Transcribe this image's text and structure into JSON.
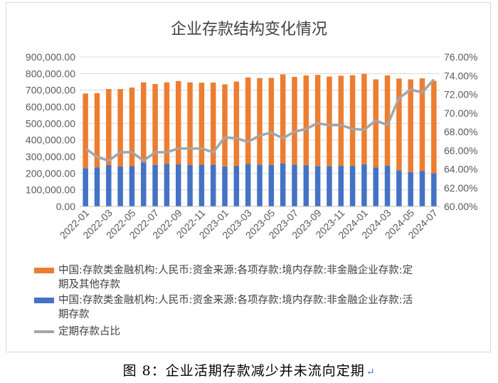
{
  "caption": "图 8：企业活期存款减少并未流向定期",
  "caption_mark": "↵",
  "chart_data": {
    "type": "bar",
    "title": "企业存款结构变化情况",
    "stacked": true,
    "categories": [
      "2022-01",
      "2022-02",
      "2022-03",
      "2022-04",
      "2022-05",
      "2022-06",
      "2022-07",
      "2022-08",
      "2022-09",
      "2022-10",
      "2022-11",
      "2022-12",
      "2023-01",
      "2023-02",
      "2023-03",
      "2023-04",
      "2023-05",
      "2023-06",
      "2023-07",
      "2023-08",
      "2023-09",
      "2023-10",
      "2023-11",
      "2023-12",
      "2024-01",
      "2024-02",
      "2024-03",
      "2024-04",
      "2024-05",
      "2024-06",
      "2024-07"
    ],
    "x_tick_labels": [
      "2022-01",
      "2022-03",
      "2022-05",
      "2022-07",
      "2022-09",
      "2022-11",
      "2023-01",
      "2023-03",
      "2023-05",
      "2023-07",
      "2023-09",
      "2023-11",
      "2024-01",
      "2024-03",
      "2024-05",
      "2024-07"
    ],
    "series": [
      {
        "name": "中国:存款类金融机构:人民币:资金来源:各项存款:境内存款:非金融企业存款:活期存款",
        "axis": "left",
        "color": "#4472c4",
        "values": [
          230000,
          235000,
          250000,
          240000,
          242000,
          265000,
          250000,
          255000,
          253000,
          250000,
          251000,
          252000,
          241000,
          244000,
          256000,
          252000,
          250000,
          259000,
          251000,
          248000,
          243000,
          243000,
          244000,
          244000,
          253000,
          235000,
          246000,
          218000,
          207000,
          214000,
          199000
        ]
      },
      {
        "name": "中国:存款类金融机构:人民币:资金来源:各项存款:境内存款:非金融企业存款:定期及其他存款",
        "axis": "left",
        "color": "#ed7d31",
        "values": [
          450000,
          447000,
          457000,
          467000,
          474000,
          482000,
          487000,
          492000,
          502000,
          497000,
          494000,
          494000,
          494000,
          508000,
          521000,
          521000,
          524000,
          536000,
          529000,
          541000,
          549000,
          539000,
          543000,
          546000,
          545000,
          530000,
          543000,
          552000,
          558000,
          557000,
          557000
        ]
      },
      {
        "name": "定期存款占比",
        "axis": "right",
        "color": "#a5a5a5",
        "type": "line",
        "values": [
          66.2,
          65.3,
          64.9,
          65.8,
          65.8,
          64.9,
          65.8,
          65.8,
          66.2,
          66.2,
          66.2,
          65.8,
          67.4,
          67.3,
          66.9,
          67.6,
          67.9,
          67.3,
          68.0,
          68.3,
          68.9,
          68.7,
          68.7,
          68.3,
          68.2,
          69.2,
          68.7,
          71.6,
          72.5,
          72.2,
          73.6
        ]
      }
    ],
    "y_left": {
      "min": 0,
      "max": 900000,
      "step": 100000,
      "tick_labels": [
        "0.00",
        "100,000.00",
        "200,000.00",
        "300,000.00",
        "400,000.00",
        "500,000.00",
        "600,000.00",
        "700,000.00",
        "800,000.00",
        "900,000.00"
      ]
    },
    "y_right": {
      "min": 60,
      "max": 76,
      "step": 2,
      "tick_labels": [
        "60.00%",
        "62.00%",
        "64.00%",
        "66.00%",
        "68.00%",
        "70.00%",
        "72.00%",
        "74.00%",
        "76.00%"
      ]
    },
    "grid": true,
    "legend_position": "bottom",
    "legend": [
      {
        "label_lines": [
          "中国:存款类金融机构:人民币:资金来源:各项存款:境内存款:非金融企业存款:定",
          "期及其他存款"
        ],
        "color": "#ed7d31",
        "shape": "rect"
      },
      {
        "label_lines": [
          "中国:存款类金融机构:人民币:资金来源:各项存款:境内存款:非金融企业存款:活",
          "期存款"
        ],
        "color": "#4472c4",
        "shape": "rect"
      },
      {
        "label_lines": [
          "定期存款占比"
        ],
        "color": "#a5a5a5",
        "shape": "line"
      }
    ]
  }
}
